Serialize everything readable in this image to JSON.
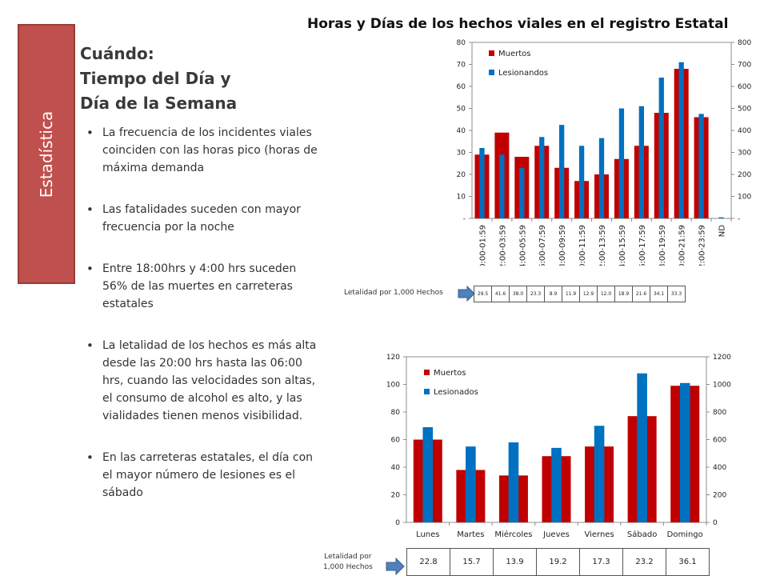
{
  "side_label": "Estadística",
  "slide_title": "Horas y Días de los hechos viales en el registro Estatal",
  "heading": [
    "Cuándo:",
    "Tiempo del Día y",
    "Día de la Semana"
  ],
  "bullets": [
    "La frecuencia de los incidentes viales coinciden con las horas pico (horas de máxima demanda",
    "Las fatalidades suceden con mayor frecuencia por la noche",
    "Entre 18:00hrs y 4:00 hrs suceden 56% de las muertes en carreteras estatales",
    "La letalidad de los hechos es más alta desde las 20:00 hrs hasta las 06:00 hrs, cuando las velocidades son altas, el consumo de alcohol es alto, y las vialidades tienen menos visibilidad.",
    "En las carreteras estatales, el día con el mayor número de lesiones es el sábado"
  ],
  "colors": {
    "muertos": "#c00000",
    "lesionados": "#0070c0",
    "side_tab": "#c0504d",
    "arrow": "#4f81bd"
  },
  "chart_data": [
    {
      "type": "bar",
      "categories": [
        "00:00-01:59",
        "02:00-03:59",
        "04:00-05:59",
        "06:00-07:59",
        "08:00-09:59",
        "10:00-11:59",
        "12:00-13:59",
        "14:00-15:59",
        "16:00-17:59",
        "18:00-19:59",
        "20:00-21:59",
        "22:00-23:59",
        "ND"
      ],
      "series": [
        {
          "name": "Muertos",
          "axis": "left",
          "color": "#c00000",
          "values": [
            29,
            39,
            28,
            33,
            23,
            17,
            20,
            27,
            33,
            48,
            68,
            46,
            0
          ]
        },
        {
          "name": "Lesionandos",
          "axis": "right",
          "color": "#0070c0",
          "values": [
            320,
            290,
            230,
            370,
            425,
            330,
            365,
            500,
            510,
            640,
            710,
            475,
            5
          ]
        }
      ],
      "y_left": {
        "range": [
          0,
          80
        ],
        "ticks": [
          "-",
          "10",
          "20",
          "30",
          "40",
          "50",
          "60",
          "70",
          "80"
        ]
      },
      "y_right": {
        "range": [
          0,
          800
        ],
        "ticks": [
          "-",
          "100",
          "200",
          "300",
          "400",
          "500",
          "600",
          "700",
          "800"
        ]
      },
      "legend_position": "top-left",
      "grid": false,
      "letalidad_label": "Letalidad por 1,000 Hechos",
      "letalidad": [
        "29.5",
        "41.6",
        "38.0",
        "23.3",
        "8.9",
        "11.9",
        "12.9",
        "12.0",
        "18.9",
        "21.6",
        "34.1",
        "33.3"
      ]
    },
    {
      "type": "bar",
      "categories": [
        "Lunes",
        "Martes",
        "Miércoles",
        "Jueves",
        "Viernes",
        "Sábado",
        "Domingo"
      ],
      "series": [
        {
          "name": "Muertos",
          "axis": "left",
          "color": "#c00000",
          "values": [
            60,
            38,
            34,
            48,
            55,
            77,
            99
          ]
        },
        {
          "name": "Lesionados",
          "axis": "right",
          "color": "#0070c0",
          "values": [
            690,
            550,
            580,
            540,
            700,
            1080,
            1010
          ]
        }
      ],
      "y_left": {
        "range": [
          0,
          120
        ],
        "ticks": [
          "0",
          "20",
          "40",
          "60",
          "80",
          "100",
          "120"
        ]
      },
      "y_right": {
        "range": [
          0,
          1200
        ],
        "ticks": [
          "0",
          "200",
          "400",
          "600",
          "800",
          "1000",
          "1200"
        ]
      },
      "legend_position": "top-left",
      "grid": false,
      "letalidad_label": [
        "Letalidad por",
        "1,000 Hechos"
      ],
      "letalidad": [
        "22.8",
        "15.7",
        "13.9",
        "19.2",
        "17.3",
        "23.2",
        "36.1"
      ]
    }
  ]
}
